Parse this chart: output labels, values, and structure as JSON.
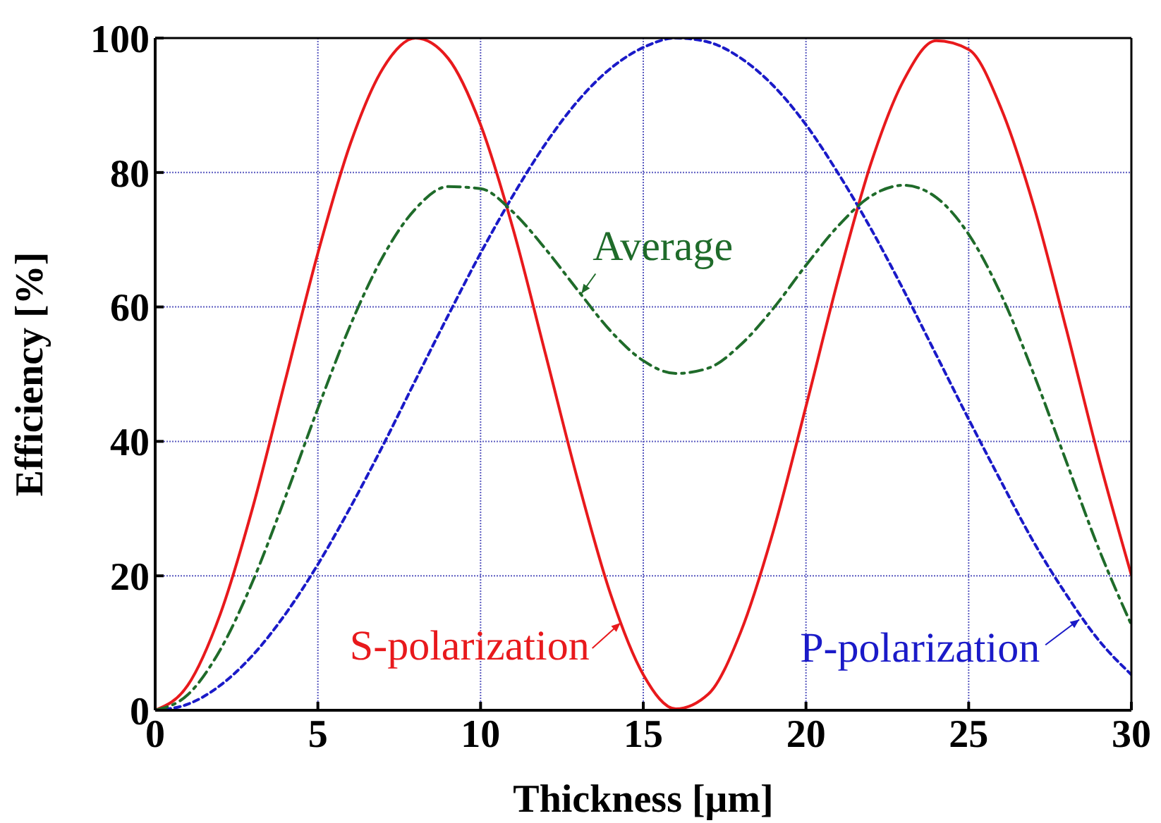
{
  "chart_data": {
    "type": "line",
    "xlabel": "Thickness [μm]",
    "ylabel": "Efficiency [%]",
    "x": [
      0,
      1,
      2,
      3,
      4,
      5,
      6,
      7,
      8,
      9,
      10,
      11,
      12,
      13,
      14,
      15,
      16,
      17,
      18,
      19,
      20,
      21,
      22,
      23,
      24,
      25,
      26,
      27,
      28,
      29,
      30
    ],
    "series": [
      {
        "color": "#e8191c",
        "line_style": "solid",
        "values": [
          0,
          3.7,
          14.3,
          30.2,
          49.1,
          68,
          84.3,
          95.5,
          100,
          97,
          87.1,
          71.6,
          52.9,
          34,
          17.2,
          5.3,
          0.2,
          2.4,
          11.7,
          26.7,
          45.2,
          64.3,
          81.4,
          93.7,
          99.6,
          98.3,
          89.5,
          75,
          56.7,
          37.5,
          20.1
        ]
      },
      {
        "color": "#1a1ac8",
        "line_style": "dotted",
        "values": [
          0,
          0.9,
          3.7,
          8.2,
          14.3,
          21.7,
          30.2,
          39.4,
          49.1,
          58.7,
          68,
          76.6,
          84.3,
          90.7,
          95.5,
          98.6,
          100,
          99.4,
          97,
          92.9,
          87.1,
          79.8,
          71.6,
          62.5,
          52.9,
          43.3,
          34,
          25,
          17.2,
          10.4,
          5.3
        ]
      },
      {
        "color": "#1f6b2a",
        "line_style": "dashed",
        "values": [
          0,
          2.3,
          9,
          19.2,
          31.7,
          44.9,
          57.3,
          67.5,
          74.6,
          77.9,
          77.6,
          74.1,
          68.6,
          62.4,
          56.4,
          52,
          50.1,
          50.9,
          54.4,
          59.8,
          66.2,
          72.1,
          76.5,
          78.1,
          76.3,
          70.8,
          61.8,
          50,
          37,
          24,
          12.7
        ]
      }
    ],
    "annotations": [
      {
        "text": "S-polarization",
        "x": 14.3,
        "y": 13
      },
      {
        "text": "P-polarization",
        "x": 28.4,
        "y": 13.5
      },
      {
        "text": "Average",
        "x": 13.1,
        "y": 62
      }
    ],
    "xlim": [
      0,
      30
    ],
    "xticks": [
      0,
      5,
      10,
      15,
      20,
      25,
      30
    ],
    "ylim": [
      0,
      100
    ],
    "yticks": [
      0,
      20,
      40,
      60,
      80,
      100
    ],
    "grid": true,
    "marker": "none"
  }
}
